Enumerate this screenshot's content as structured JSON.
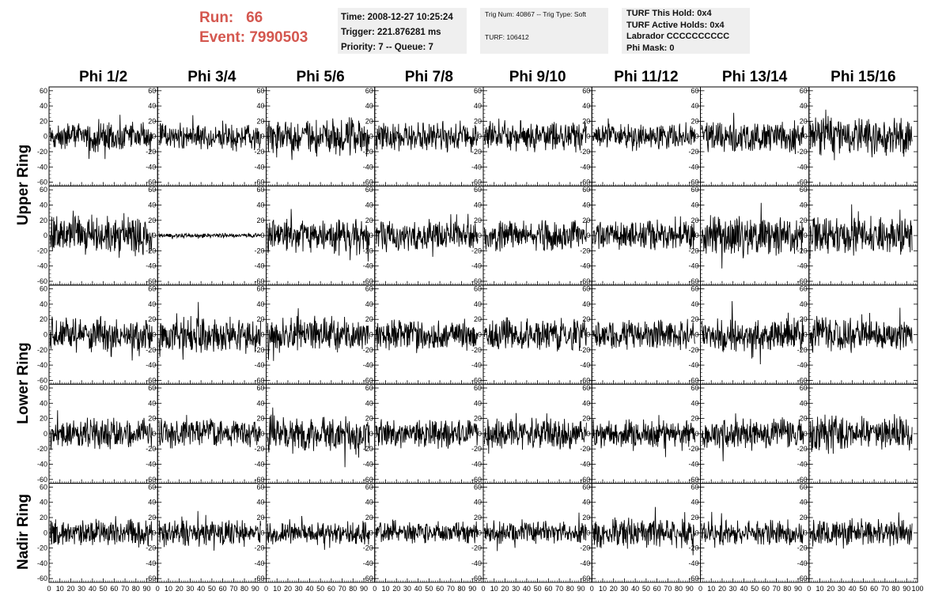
{
  "header": {
    "run_label": "Run:",
    "run_value": "66",
    "event_label": "Event:",
    "event_value": "7990503"
  },
  "info1": {
    "time": "Time: 2008-12-27 10:25:24",
    "trigger": "Trigger: 221.876281 ms",
    "priority": "Priority: 7 -- Queue: 7"
  },
  "info2": {
    "trig": "Trig Num: 40867 -- Trig Type: Soft",
    "turf": "TURF: 106412"
  },
  "info3": {
    "hold": "TURF This Hold: 0x4",
    "active": "TURF Active Holds: 0x4",
    "labrador": "Labrador CCCCCCCCCC",
    "phimask": "Phi Mask: 0"
  },
  "columns": [
    "Phi 1/2",
    "Phi 3/4",
    "Phi 5/6",
    "Phi 7/8",
    "Phi 9/10",
    "Phi 11/12",
    "Phi 13/14",
    "Phi 15/16"
  ],
  "rings": [
    {
      "label": "Upper Ring",
      "rows": [
        0,
        1
      ]
    },
    {
      "label": "Lower Ring",
      "rows": [
        2,
        3
      ]
    },
    {
      "label": "Nadir Ring",
      "rows": [
        4
      ]
    }
  ],
  "chart_data": {
    "type": "line",
    "grid_rows": 5,
    "grid_cols": 8,
    "xlim": [
      0,
      100
    ],
    "ylim": [
      -65,
      65
    ],
    "x_tick_labels": [
      "0",
      "10",
      "20",
      "30",
      "40",
      "50",
      "60",
      "70",
      "80",
      "90",
      "100"
    ],
    "y_tick_labels": [
      "60",
      "40",
      "20",
      "0",
      "-20",
      "-40",
      "-60"
    ],
    "y_tick_values": [
      60,
      40,
      20,
      0,
      -20,
      -40,
      -60
    ],
    "amplitudes": [
      [
        14,
        12,
        18,
        14,
        14,
        12,
        15,
        18
      ],
      [
        18,
        2,
        16,
        14,
        14,
        14,
        18,
        17
      ],
      [
        16,
        16,
        16,
        14,
        15,
        13,
        16,
        16
      ],
      [
        14,
        13,
        16,
        14,
        14,
        13,
        14,
        17
      ],
      [
        12,
        12,
        11,
        10,
        11,
        14,
        11,
        13
      ]
    ]
  }
}
